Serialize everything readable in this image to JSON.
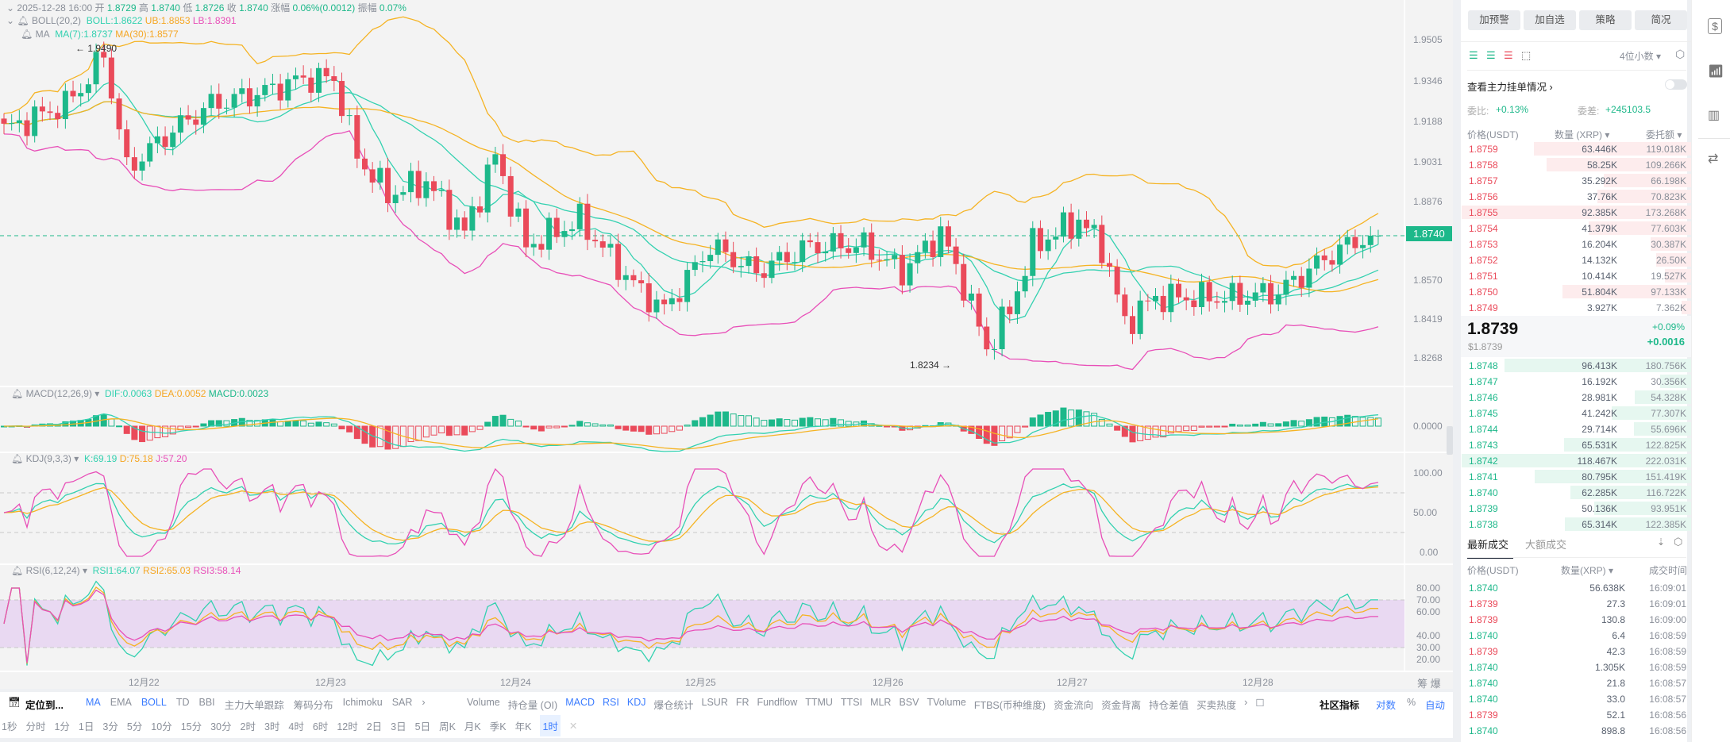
{
  "header": {
    "datetime": "2025-12-28 16:00",
    "open_label": "开",
    "open": "1.8729",
    "high_label": "高",
    "high": "1.8740",
    "low_label": "低",
    "low": "1.8726",
    "close_label": "收",
    "close": "1.8740",
    "change_label": "涨幅",
    "change": "0.06%(0.0012)",
    "amp_label": "振幅",
    "amp": "0.07%"
  },
  "boll": {
    "name": "BOLL(20,2)",
    "mid": "BOLL:1.8622",
    "ub": "UB:1.8853",
    "lb": "LB:1.8391"
  },
  "ma": {
    "name": "MA",
    "ma7": "MA(7):1.8737",
    "ma30": "MA(30):1.8577"
  },
  "annotations": {
    "high": "← 1.9490",
    "low": "1.8234 →"
  },
  "price_axis": [
    "1.9505",
    "1.9346",
    "1.9188",
    "1.9031",
    "1.8876",
    "1.8570",
    "1.8419",
    "1.8268"
  ],
  "current_price": "1.8740",
  "macd": {
    "name": "MACD(12,26,9)",
    "dif": "DIF:0.0063",
    "dea": "DEA:0.0052",
    "macd": "MACD:0.0023",
    "axis": "0.0000"
  },
  "kdj": {
    "name": "KDJ(9,3,3)",
    "k": "K:69.19",
    "d": "D:75.18",
    "j": "J:57.20",
    "axis": [
      "100.00",
      "50.00",
      "0.00"
    ]
  },
  "rsi": {
    "name": "RSI(6,12,24)",
    "r1": "RSI1:64.07",
    "r2": "RSI2:65.03",
    "r3": "RSI3:58.14",
    "axis": [
      "80.00",
      "70.00",
      "60.00",
      "40.00",
      "30.00",
      "20.00"
    ]
  },
  "dates": [
    "12月22",
    "12月23",
    "12月24",
    "12月25",
    "12月26",
    "12月27",
    "12月28"
  ],
  "corner": [
    "筹",
    "爆"
  ],
  "price_path": [
    [
      0,
      1.915
    ],
    [
      8,
      1.925
    ],
    [
      11,
      1.935
    ],
    [
      13,
      1.945
    ],
    [
      16,
      1.9
    ],
    [
      18,
      1.905
    ],
    [
      22,
      1.915
    ],
    [
      27,
      1.925
    ],
    [
      34,
      1.93
    ],
    [
      39,
      1.935
    ],
    [
      43,
      1.935
    ],
    [
      46,
      1.905
    ],
    [
      50,
      1.89
    ],
    [
      55,
      1.895
    ],
    [
      60,
      1.875
    ],
    [
      64,
      1.905
    ],
    [
      68,
      1.87
    ],
    [
      75,
      1.88
    ],
    [
      82,
      1.855
    ],
    [
      86,
      1.845
    ],
    [
      92,
      1.87
    ],
    [
      98,
      1.86
    ],
    [
      105,
      1.87
    ],
    [
      112,
      1.87
    ],
    [
      117,
      1.86
    ],
    [
      122,
      1.875
    ],
    [
      125,
      1.855
    ],
    [
      128,
      1.83
    ],
    [
      131,
      1.845
    ],
    [
      134,
      1.87
    ],
    [
      140,
      1.88
    ],
    [
      143,
      1.87
    ],
    [
      146,
      1.84
    ],
    [
      150,
      1.85
    ],
    [
      160,
      1.85
    ],
    [
      166,
      1.852
    ],
    [
      172,
      1.865
    ],
    [
      176,
      1.872
    ],
    [
      179,
      1.874
    ]
  ],
  "colors": {
    "up": "#1db88a",
    "down": "#ea4a5a",
    "boll_mid": "#33d1b0",
    "boll_ub": "#f5b323",
    "boll_lb": "#e84fb8"
  },
  "toolbar": {
    "locate": "定位到...",
    "main": [
      "MA",
      "EMA",
      "BOLL",
      "TD",
      "BBI",
      "主力大单跟踪",
      "筹码分布",
      "Ichimoku",
      "SAR"
    ],
    "sub": [
      "Volume",
      "持仓量 (OI)",
      "MACD",
      "RSI",
      "KDJ",
      "爆仓统计",
      "LSUR",
      "FR",
      "Fundflow",
      "TTMU",
      "TTSI",
      "MLR",
      "BSV",
      "TVolume",
      "FTBS(币种维度)",
      "资金流向",
      "资金背离",
      "持仓差值",
      "买卖热度"
    ],
    "community": "社区指标",
    "log": "对数",
    "pct": "%",
    "auto": "自动"
  },
  "timeframes": [
    "1秒",
    "分时",
    "1分",
    "1日",
    "3分",
    "5分",
    "10分",
    "15分",
    "30分",
    "2时",
    "3时",
    "4时",
    "6时",
    "12时",
    "2日",
    "3日",
    "5日",
    "周K",
    "月K",
    "季K",
    "年K",
    "1时"
  ],
  "active_timeframe": "1时",
  "panel": {
    "buttons": [
      "加预警",
      "加自选",
      "策略",
      "简况"
    ],
    "decimals": "4位小数",
    "main_orders": "查看主力挂单情况",
    "ratio_label": "委比:",
    "ratio": "+0.13%",
    "diff_label": "委差:",
    "diff": "+245103.5",
    "cols": [
      "价格(USDT)",
      "数量 (XRP)",
      "委托额"
    ],
    "asks": [
      [
        "1.8759",
        "63.446K",
        "119.018K"
      ],
      [
        "1.8758",
        "58.25K",
        "109.266K"
      ],
      [
        "1.8757",
        "35.292K",
        "66.198K"
      ],
      [
        "1.8756",
        "37.76K",
        "70.823K"
      ],
      [
        "1.8755",
        "92.385K",
        "173.268K"
      ],
      [
        "1.8754",
        "41.379K",
        "77.603K"
      ],
      [
        "1.8753",
        "16.204K",
        "30.387K"
      ],
      [
        "1.8752",
        "14.132K",
        "26.50K"
      ],
      [
        "1.8751",
        "10.414K",
        "19.527K"
      ],
      [
        "1.8750",
        "51.804K",
        "97.133K"
      ],
      [
        "1.8749",
        "3.927K",
        "7.362K"
      ]
    ],
    "last_price": "1.8739",
    "last_usd": "$1.8739",
    "last_pct": "+0.09%",
    "last_chg": "+0.0016",
    "bids": [
      [
        "1.8748",
        "96.413K",
        "180.756K"
      ],
      [
        "1.8747",
        "16.192K",
        "30.356K"
      ],
      [
        "1.8746",
        "28.981K",
        "54.328K"
      ],
      [
        "1.8745",
        "41.242K",
        "77.307K"
      ],
      [
        "1.8744",
        "29.714K",
        "55.696K"
      ],
      [
        "1.8743",
        "65.531K",
        "122.825K"
      ],
      [
        "1.8742",
        "118.467K",
        "222.031K"
      ],
      [
        "1.8741",
        "80.795K",
        "151.419K"
      ],
      [
        "1.8740",
        "62.285K",
        "116.722K"
      ],
      [
        "1.8739",
        "50.136K",
        "93.951K"
      ],
      [
        "1.8738",
        "65.314K",
        "122.385K"
      ]
    ],
    "trade_tabs": [
      "最新成交",
      "大额成交"
    ],
    "trade_cols": [
      "价格(USDT)",
      "数量(XRP)",
      "成交时间"
    ],
    "trades": [
      [
        "1.8740",
        "56.638K",
        "16:09:01",
        "buy"
      ],
      [
        "1.8739",
        "27.3",
        "16:09:01",
        "sell"
      ],
      [
        "1.8739",
        "130.8",
        "16:09:00",
        "sell"
      ],
      [
        "1.8740",
        "6.4",
        "16:08:59",
        "buy"
      ],
      [
        "1.8739",
        "42.3",
        "16:08:59",
        "sell"
      ],
      [
        "1.8740",
        "1.305K",
        "16:08:59",
        "buy"
      ],
      [
        "1.8740",
        "21.8",
        "16:08:57",
        "buy"
      ],
      [
        "1.8740",
        "33.0",
        "16:08:57",
        "buy"
      ],
      [
        "1.8739",
        "52.1",
        "16:08:56",
        "sell"
      ],
      [
        "1.8740",
        "898.8",
        "16:08:56",
        "buy"
      ]
    ]
  }
}
